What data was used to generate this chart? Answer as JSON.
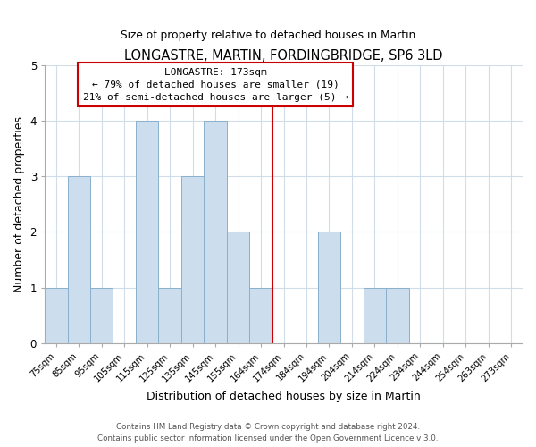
{
  "title": "LONGASTRE, MARTIN, FORDINGBRIDGE, SP6 3LD",
  "subtitle": "Size of property relative to detached houses in Martin",
  "xlabel": "Distribution of detached houses by size in Martin",
  "ylabel": "Number of detached properties",
  "bin_labels": [
    "75sqm",
    "85sqm",
    "95sqm",
    "105sqm",
    "115sqm",
    "125sqm",
    "135sqm",
    "145sqm",
    "155sqm",
    "164sqm",
    "174sqm",
    "184sqm",
    "194sqm",
    "204sqm",
    "214sqm",
    "224sqm",
    "234sqm",
    "244sqm",
    "254sqm",
    "263sqm",
    "273sqm"
  ],
  "bar_values": [
    1,
    3,
    1,
    0,
    4,
    1,
    3,
    4,
    2,
    1,
    0,
    0,
    2,
    0,
    1,
    1,
    0,
    0,
    0,
    0,
    0
  ],
  "bar_color": "#ccdded",
  "bar_edge_color": "#8ab0cc",
  "vline_position": 10,
  "vline_color": "#cc0000",
  "ylim": [
    0,
    5
  ],
  "yticks": [
    0,
    1,
    2,
    3,
    4,
    5
  ],
  "annotation_title": "LONGASTRE: 173sqm",
  "annotation_line1": "← 79% of detached houses are smaller (19)",
  "annotation_line2": "21% of semi-detached houses are larger (5) →",
  "annotation_box_color": "#ffffff",
  "annotation_box_edge": "#cc0000",
  "footer1": "Contains HM Land Registry data © Crown copyright and database right 2024.",
  "footer2": "Contains public sector information licensed under the Open Government Licence v 3.0.",
  "background_color": "#ffffff",
  "grid_color": "#d0dce8"
}
